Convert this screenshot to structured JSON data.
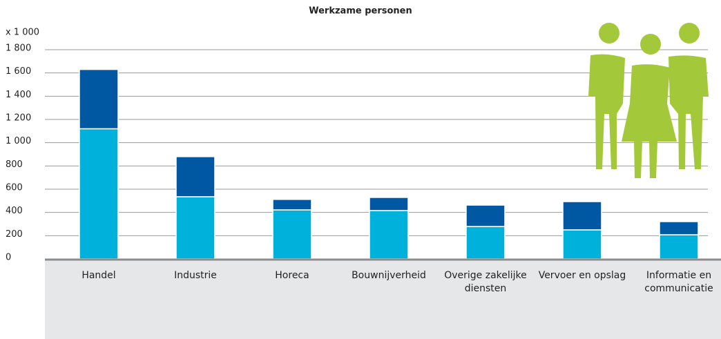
{
  "chart_data": {
    "type": "stacked_bar",
    "title": "Werkzame personen",
    "unit_label": "x 1 000",
    "categories": [
      "Handel",
      "Industrie",
      "Horeca",
      "Bouwnijverheid",
      "Overige zakelijke diensten",
      "Vervoer en opslag",
      "Informatie en communicatie"
    ],
    "series": [
      {
        "color": "#00b1dc",
        "values": [
          1120,
          535,
          422,
          416,
          279,
          250,
          208
        ]
      },
      {
        "color": "#0058a3",
        "values": [
          510,
          345,
          90,
          113,
          184,
          243,
          113
        ]
      }
    ],
    "ylim": [
      0,
      1800
    ],
    "yticks": [
      0,
      200,
      400,
      600,
      800,
      {
        "value": 1000,
        "label": "1 000"
      },
      {
        "value": 1200,
        "label": "1 200"
      },
      {
        "value": 1400,
        "label": "1 400"
      },
      {
        "value": 1600,
        "label": "1 600"
      },
      {
        "value": 1800,
        "label": "1 800"
      }
    ],
    "grid": true
  }
}
